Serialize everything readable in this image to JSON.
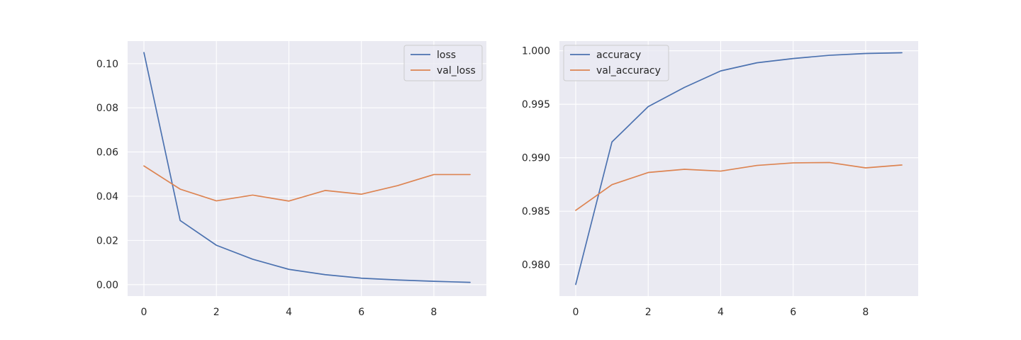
{
  "chart_data": [
    {
      "type": "line",
      "x": [
        0,
        1,
        2,
        3,
        4,
        5,
        6,
        7,
        8,
        9
      ],
      "series": [
        {
          "name": "loss",
          "values": [
            0.105,
            0.029,
            0.0178,
            0.0115,
            0.0069,
            0.0045,
            0.0029,
            0.0021,
            0.0015,
            0.001
          ],
          "color": "#4c72b0"
        },
        {
          "name": "val_loss",
          "values": [
            0.0537,
            0.0432,
            0.0379,
            0.0405,
            0.0378,
            0.0426,
            0.0409,
            0.0448,
            0.0498,
            0.0498
          ],
          "color": "#dd8452"
        }
      ],
      "xticks": [
        0,
        2,
        4,
        6,
        8
      ],
      "xtick_labels": [
        "0",
        "2",
        "4",
        "6",
        "8"
      ],
      "yticks": [
        0.0,
        0.02,
        0.04,
        0.06,
        0.08,
        0.1
      ],
      "ytick_labels": [
        "0.00",
        "0.02",
        "0.04",
        "0.06",
        "0.08",
        "0.10"
      ],
      "xlim": [
        -0.45,
        9.45
      ],
      "ylim": [
        -0.0052,
        0.1102
      ],
      "grid": true,
      "legend_position": "top-right",
      "title": "",
      "xlabel": "",
      "ylabel": ""
    },
    {
      "type": "line",
      "x": [
        0,
        1,
        2,
        3,
        4,
        5,
        6,
        7,
        8,
        9
      ],
      "series": [
        {
          "name": "accuracy",
          "values": [
            0.97815,
            0.99148,
            0.99478,
            0.99658,
            0.99812,
            0.99888,
            0.99928,
            0.99958,
            0.99975,
            0.99982
          ],
          "color": "#4c72b0"
        },
        {
          "name": "val_accuracy",
          "values": [
            0.98508,
            0.98748,
            0.98862,
            0.98892,
            0.98875,
            0.98928,
            0.98952,
            0.98955,
            0.98905,
            0.98932
          ],
          "color": "#dd8452"
        }
      ],
      "xticks": [
        0,
        2,
        4,
        6,
        8
      ],
      "xtick_labels": [
        "0",
        "2",
        "4",
        "6",
        "8"
      ],
      "yticks": [
        0.98,
        0.985,
        0.99,
        0.995,
        1.0
      ],
      "ytick_labels": [
        "0.980",
        "0.985",
        "0.990",
        "0.995",
        "1.000"
      ],
      "xlim": [
        -0.45,
        9.45
      ],
      "ylim": [
        0.97706,
        1.00091
      ],
      "grid": true,
      "legend_position": "top-left",
      "title": "",
      "xlabel": "",
      "ylabel": ""
    }
  ],
  "colors": {
    "axes_background": "#eaeaf2",
    "grid": "#ffffff",
    "text": "#262626"
  }
}
